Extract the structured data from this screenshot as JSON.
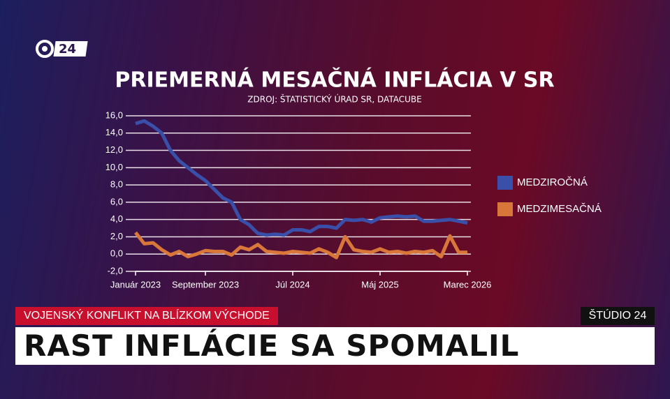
{
  "logo": "24",
  "banner": {
    "kicker": "VOJENSKÝ KONFLIKT NA BLÍZKOM VÝCHODE",
    "studio": "ŠTÚDIO 24",
    "headline": "RAST INFLÁCIE SA SPOMALIL"
  },
  "chart_data": {
    "type": "line",
    "title": "PRIEMERNÁ MESAČNÁ INFLÁCIA V SR",
    "subtitle": "ZDROJ: ŠTATISTICKÝ ÚRAD SR, DATACUBE",
    "categories": [
      "Január 2023",
      null,
      null,
      null,
      null,
      null,
      null,
      null,
      "September 2023",
      null,
      null,
      null,
      null,
      null,
      null,
      null,
      null,
      null,
      "Júl 2024",
      null,
      null,
      null,
      null,
      null,
      null,
      null,
      null,
      null,
      "Máj 2025",
      null,
      null,
      null,
      null,
      null,
      null,
      null,
      null,
      null,
      "Marec 2026"
    ],
    "series": [
      {
        "name": "MEDZIROČNÁ",
        "color": "#3a4fa8",
        "values": [
          15.1,
          15.4,
          14.8,
          14.0,
          12.0,
          10.8,
          10.0,
          9.2,
          8.5,
          7.5,
          6.5,
          6.0,
          4.0,
          3.4,
          2.4,
          2.2,
          2.3,
          2.2,
          2.8,
          2.8,
          2.6,
          3.2,
          3.2,
          3.0,
          4.0,
          3.9,
          4.0,
          3.7,
          4.2,
          4.3,
          4.4,
          4.3,
          4.4,
          3.8,
          3.8,
          3.9,
          4.0,
          3.8,
          3.6
        ]
      },
      {
        "name": "MEDZIMESAČNÁ",
        "color": "#d9773a",
        "values": [
          2.5,
          1.2,
          1.3,
          0.5,
          -0.1,
          0.3,
          -0.3,
          0.0,
          0.4,
          0.3,
          0.3,
          -0.1,
          0.8,
          0.5,
          1.1,
          0.3,
          0.2,
          0.1,
          0.3,
          0.2,
          0.1,
          0.6,
          0.2,
          -0.4,
          2.0,
          0.5,
          0.3,
          0.2,
          0.6,
          0.2,
          0.3,
          0.1,
          0.3,
          0.2,
          0.4,
          -0.3,
          2.1,
          0.2,
          0.2
        ]
      }
    ],
    "ylim": [
      -2,
      16
    ],
    "yticks": [
      {
        "value": -2,
        "label": "-2,0"
      },
      {
        "value": 0,
        "label": "0,0"
      },
      {
        "value": 2,
        "label": "2,0"
      },
      {
        "value": 4,
        "label": "4,0"
      },
      {
        "value": 6,
        "label": "6,0"
      },
      {
        "value": 8,
        "label": "8,0"
      },
      {
        "value": 10,
        "label": "10,0"
      },
      {
        "value": 12,
        "label": "12,0"
      },
      {
        "value": 14,
        "label": "14,0"
      },
      {
        "value": 16,
        "label": "16,0"
      }
    ],
    "grid": true,
    "legend": "right"
  }
}
